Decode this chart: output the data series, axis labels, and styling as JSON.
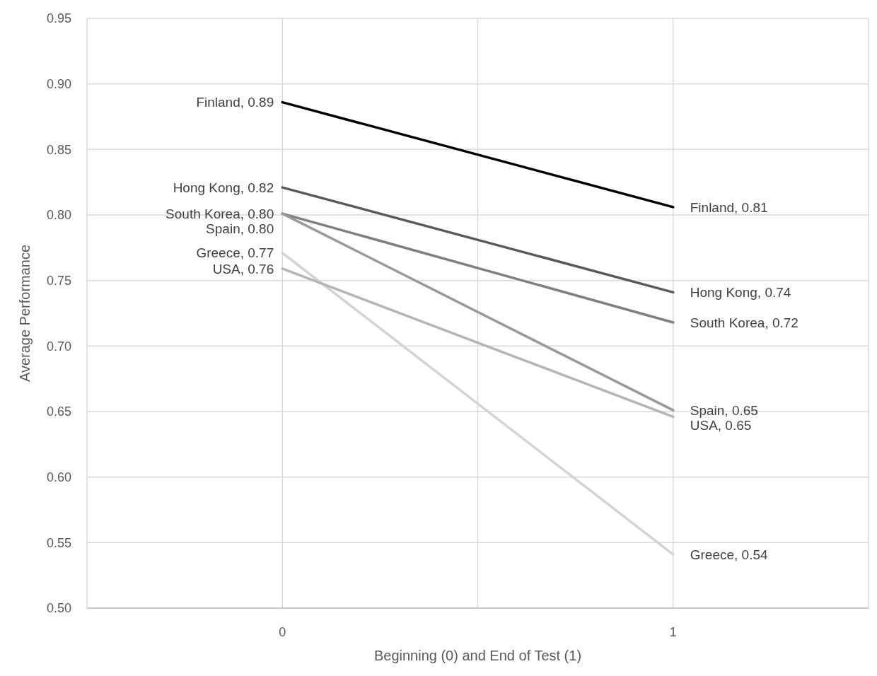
{
  "chart_data": {
    "type": "line",
    "xlabel": "Beginning (0) and End of Test (1)",
    "ylabel": "Average Performance",
    "x": [
      0,
      1
    ],
    "xlim": [
      -0.5,
      1.5
    ],
    "xticks": [
      {
        "value": -0.5,
        "label": null
      },
      0,
      {
        "value": 0.5,
        "label": null
      },
      1,
      {
        "value": 1.5,
        "label": null
      }
    ],
    "ylim": [
      0.5,
      0.95
    ],
    "yticks": [
      {
        "value": 0.5,
        "label": "0.50"
      },
      {
        "value": 0.55,
        "label": "0.55"
      },
      {
        "value": 0.6,
        "label": "0.60"
      },
      {
        "value": 0.65,
        "label": "0.65"
      },
      {
        "value": 0.7,
        "label": "0.70"
      },
      {
        "value": 0.75,
        "label": "0.75"
      },
      {
        "value": 0.8,
        "label": "0.80"
      },
      {
        "value": 0.85,
        "label": "0.85"
      },
      {
        "value": 0.9,
        "label": "0.90"
      },
      {
        "value": 0.95,
        "label": "0.95"
      }
    ],
    "grid": true,
    "marker": "none",
    "line_style": "solid",
    "series": [
      {
        "color": "#000000",
        "values": [
          0.886,
          0.806
        ],
        "value_labels": [
          "Finland, 0.89",
          "Finland, 0.81"
        ]
      },
      {
        "color": "#595959",
        "values": [
          0.821,
          0.741
        ],
        "value_labels": [
          "Hong Kong, 0.82",
          "Hong Kong, 0.74"
        ]
      },
      {
        "color": "#7f7f7f",
        "values": [
          0.801,
          0.718
        ],
        "value_labels": [
          "South Korea, 0.80",
          "South Korea, 0.72"
        ]
      },
      {
        "color": "#999999",
        "values": [
          0.801,
          0.651
        ],
        "value_labels": [
          "Spain, 0.80",
          "Spain, 0.65"
        ]
      },
      {
        "color": "#d3d3d3",
        "values": [
          0.771,
          0.541
        ],
        "value_labels": [
          "Greece, 0.77",
          "Greece, 0.54"
        ]
      },
      {
        "color": "#b5b5b5",
        "values": [
          0.759,
          0.646
        ],
        "value_labels": [
          "USA, 0.76",
          "USA, 0.65"
        ]
      }
    ]
  }
}
